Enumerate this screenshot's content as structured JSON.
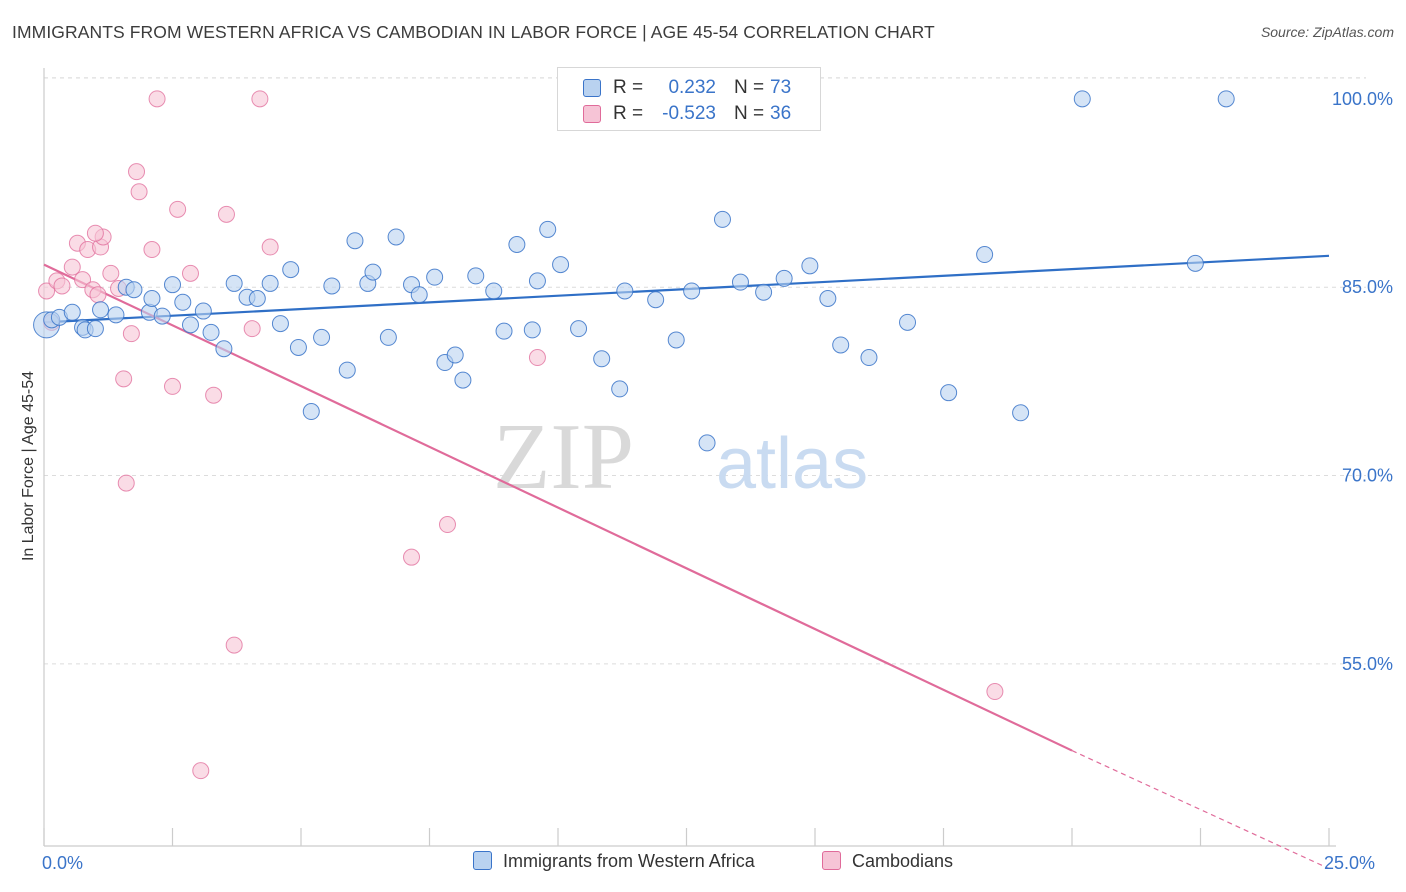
{
  "title": "IMMIGRANTS FROM WESTERN AFRICA VS CAMBODIAN IN LABOR FORCE | AGE 45-54 CORRELATION CHART",
  "source": "Source: ZipAtlas.com",
  "watermark": {
    "zip": "ZIP",
    "atlas": "atlas"
  },
  "legend": {
    "rows": [
      {
        "r_label": "R =",
        "r_value": "0.232",
        "n_label": "N =",
        "n_value": "73"
      },
      {
        "r_label": "R =",
        "r_value": "-0.523",
        "n_label": "N =",
        "n_value": "36"
      }
    ]
  },
  "colors": {
    "blue": "#3a74c9",
    "blue_fill": "#b9d2f0",
    "blue_line": "#2f6fc6",
    "pink": "#e06b9a",
    "pink_fill": "#f6c4d6",
    "pink_line": "#e06b9a",
    "grid": "#dcdcdc",
    "axis_text": "#3a74c9"
  },
  "chart_data": {
    "type": "scatter",
    "title": "IMMIGRANTS FROM WESTERN AFRICA VS CAMBODIAN IN LABOR FORCE | AGE 45-54 CORRELATION CHART",
    "xlabel": "",
    "ylabel": "In Labor Force | Age 45-54",
    "xlim": [
      0,
      25
    ],
    "ylim": [
      40.5,
      101.5
    ],
    "x_tick_labels": [
      "0.0%",
      "25.0%"
    ],
    "y_ticks": [
      55,
      70,
      85,
      100
    ],
    "y_tick_labels": [
      "55.0%",
      "70.0%",
      "85.0%",
      "100.0%"
    ],
    "grid": true,
    "legend_position": "bottom",
    "series": [
      {
        "name": "Immigrants from Western Africa",
        "R": 0.232,
        "N": 73,
        "trend": {
          "x0": 0,
          "y0": 82.2,
          "x1": 25,
          "y1": 87.5
        },
        "points": [
          [
            0.05,
            82.0
          ],
          [
            0.15,
            82.4
          ],
          [
            0.3,
            82.6
          ],
          [
            0.55,
            83.0
          ],
          [
            0.75,
            81.8
          ],
          [
            0.8,
            81.6
          ],
          [
            1.0,
            81.7
          ],
          [
            1.4,
            82.8
          ],
          [
            1.6,
            85.0
          ],
          [
            1.75,
            84.8
          ],
          [
            2.05,
            83.0
          ],
          [
            2.1,
            84.1
          ],
          [
            2.5,
            85.2
          ],
          [
            2.7,
            83.8
          ],
          [
            2.85,
            82.0
          ],
          [
            3.1,
            83.1
          ],
          [
            3.25,
            81.4
          ],
          [
            3.5,
            80.1
          ],
          [
            3.7,
            85.3
          ],
          [
            3.95,
            84.2
          ],
          [
            4.15,
            84.1
          ],
          [
            4.4,
            85.3
          ],
          [
            4.6,
            82.1
          ],
          [
            4.8,
            86.4
          ],
          [
            4.95,
            80.2
          ],
          [
            5.2,
            75.1
          ],
          [
            5.4,
            81.0
          ],
          [
            5.6,
            85.1
          ],
          [
            5.9,
            78.4
          ],
          [
            6.05,
            88.7
          ],
          [
            6.3,
            85.3
          ],
          [
            6.4,
            86.2
          ],
          [
            6.7,
            81.0
          ],
          [
            6.85,
            89.0
          ],
          [
            7.15,
            85.2
          ],
          [
            7.3,
            84.4
          ],
          [
            7.6,
            85.8
          ],
          [
            7.8,
            79.0
          ],
          [
            8.0,
            79.6
          ],
          [
            8.15,
            77.6
          ],
          [
            8.4,
            85.9
          ],
          [
            8.75,
            84.7
          ],
          [
            8.95,
            81.5
          ],
          [
            9.2,
            88.4
          ],
          [
            9.5,
            81.6
          ],
          [
            9.8,
            89.6
          ],
          [
            10.05,
            86.8
          ],
          [
            10.4,
            81.7
          ],
          [
            10.85,
            79.3
          ],
          [
            11.3,
            84.7
          ],
          [
            11.9,
            84.0
          ],
          [
            12.3,
            80.8
          ],
          [
            12.9,
            72.6
          ],
          [
            13.2,
            90.4
          ],
          [
            13.55,
            85.4
          ],
          [
            14.0,
            84.6
          ],
          [
            14.4,
            85.7
          ],
          [
            14.9,
            86.7
          ],
          [
            15.25,
            84.1
          ],
          [
            16.05,
            79.4
          ],
          [
            16.8,
            82.2
          ],
          [
            17.6,
            76.6
          ],
          [
            18.3,
            87.6
          ],
          [
            20.2,
            100.0
          ],
          [
            23.0,
            100.0
          ],
          [
            22.4,
            86.9
          ],
          [
            19.0,
            75.0
          ],
          [
            11.2,
            76.9
          ],
          [
            12.6,
            84.7
          ],
          [
            1.1,
            83.2
          ],
          [
            2.3,
            82.7
          ],
          [
            9.6,
            85.5
          ],
          [
            15.5,
            80.4
          ]
        ]
      },
      {
        "name": "Cambodians",
        "R": -0.523,
        "N": 36,
        "trend": {
          "x0": 0,
          "y0": 86.8,
          "x1": 20.0,
          "y1": 48.1,
          "dash_x1": 25,
          "dash_y1": 38.7
        },
        "points": [
          [
            0.05,
            84.7
          ],
          [
            0.25,
            85.5
          ],
          [
            0.35,
            85.1
          ],
          [
            0.55,
            86.6
          ],
          [
            0.65,
            88.5
          ],
          [
            0.75,
            85.6
          ],
          [
            0.85,
            88.0
          ],
          [
            0.95,
            84.8
          ],
          [
            1.05,
            84.4
          ],
          [
            1.1,
            88.2
          ],
          [
            1.15,
            89.0
          ],
          [
            1.3,
            86.1
          ],
          [
            1.45,
            84.9
          ],
          [
            1.55,
            77.7
          ],
          [
            1.6,
            69.4
          ],
          [
            1.7,
            81.3
          ],
          [
            1.8,
            94.2
          ],
          [
            1.85,
            92.6
          ],
          [
            2.1,
            88.0
          ],
          [
            2.2,
            100.0
          ],
          [
            2.5,
            77.1
          ],
          [
            2.6,
            91.2
          ],
          [
            2.85,
            86.1
          ],
          [
            3.05,
            46.5
          ],
          [
            3.3,
            76.4
          ],
          [
            3.55,
            90.8
          ],
          [
            3.7,
            56.5
          ],
          [
            4.05,
            81.7
          ],
          [
            4.2,
            100.0
          ],
          [
            4.4,
            88.2
          ],
          [
            7.15,
            63.5
          ],
          [
            7.85,
            66.1
          ],
          [
            9.6,
            79.4
          ],
          [
            18.5,
            52.8
          ],
          [
            0.15,
            82.2
          ],
          [
            1.0,
            89.3
          ]
        ]
      }
    ]
  }
}
